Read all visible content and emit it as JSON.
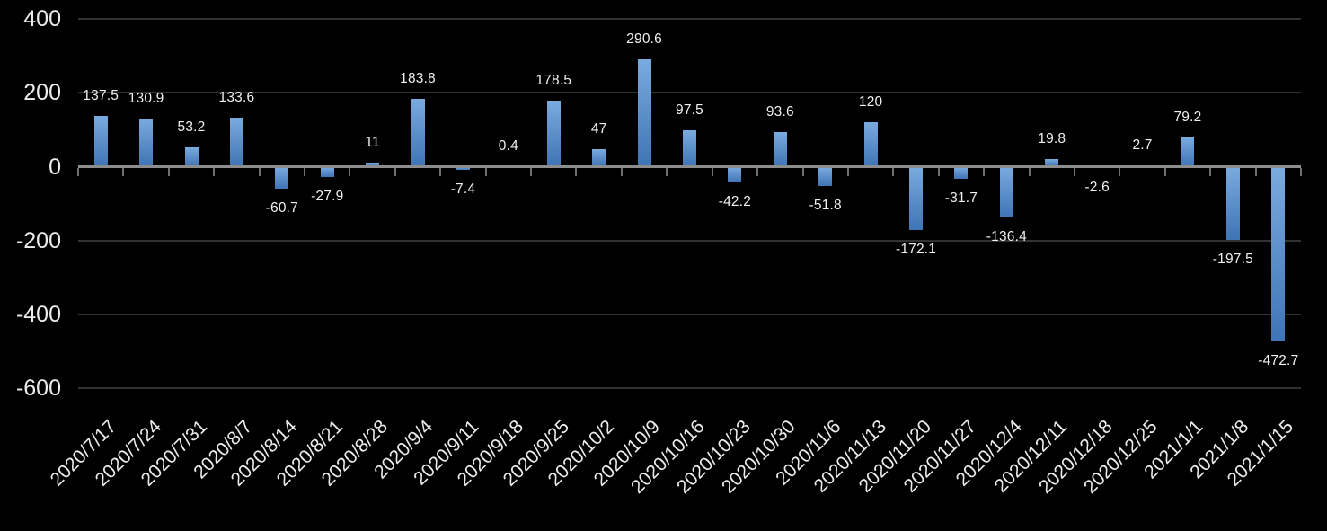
{
  "chart_data": {
    "type": "bar",
    "title": "",
    "xlabel": "",
    "ylabel": "",
    "categories": [
      "2020/7/17",
      "2020/7/24",
      "2020/7/31",
      "2020/8/7",
      "2020/8/14",
      "2020/8/21",
      "2020/8/28",
      "2020/9/4",
      "2020/9/11",
      "2020/9/18",
      "2020/9/25",
      "2020/10/2",
      "2020/10/9",
      "2020/10/16",
      "2020/10/23",
      "2020/10/30",
      "2020/11/6",
      "2020/11/13",
      "2020/11/20",
      "2020/11/27",
      "2020/12/4",
      "2020/12/11",
      "2020/12/18",
      "2020/12/25",
      "2021/1/1",
      "2021/1/8",
      "2021/1/15"
    ],
    "values": [
      137.5,
      130.9,
      53.2,
      133.6,
      -60.7,
      -27.9,
      11,
      183.8,
      -7.4,
      0.4,
      178.5,
      47,
      290.6,
      97.5,
      -42.2,
      93.6,
      -51.8,
      120,
      -172.1,
      -31.7,
      -136.4,
      19.8,
      -2.6,
      2.7,
      79.2,
      -197.5,
      -472.7
    ],
    "data_labels_visible": true,
    "y_ticks": [
      400,
      200,
      0,
      -200,
      -400,
      -600
    ],
    "ylim": [
      -600,
      400
    ],
    "grid": "horizontal",
    "legend": "none",
    "colors": {
      "background": "#000000",
      "bar_gradient_top": "#7aabdf",
      "bar_gradient_bottom": "#3f74b5",
      "gridline": "#323232",
      "axis_line": "#8d8d8d",
      "axis_tick": "#707070",
      "axis_text": "#ececec",
      "data_label_text": "#f0f0f0"
    }
  }
}
